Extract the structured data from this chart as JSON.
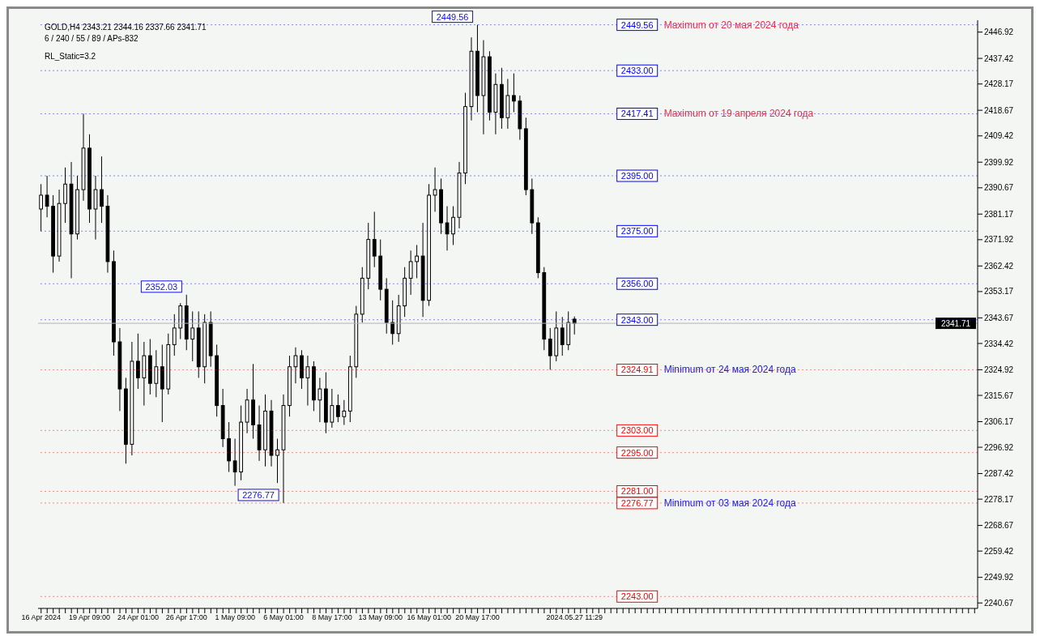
{
  "chart_data": {
    "type": "candlestick",
    "color": "#000000",
    "categories": [
      "16 Apr 2024",
      null,
      null,
      null,
      null,
      null,
      null,
      null,
      "19 Apr 09:00",
      null,
      null,
      null,
      null,
      null,
      null,
      null,
      "24 Apr 01:00",
      null,
      null,
      null,
      null,
      null,
      null,
      null,
      "26 Apr 17:00",
      null,
      null,
      null,
      null,
      null,
      null,
      null,
      "1 May 09:00",
      null,
      null,
      null,
      null,
      null,
      null,
      null,
      "6 May 01:00",
      null,
      null,
      null,
      null,
      null,
      null,
      null,
      "8 May 17:00",
      null,
      null,
      null,
      null,
      null,
      null,
      null,
      "13 May 09:00",
      null,
      null,
      null,
      null,
      null,
      null,
      null,
      "16 May 01:00",
      null,
      null,
      null,
      null,
      null,
      null,
      null,
      "20 May 17:00",
      null,
      null,
      null,
      null,
      null,
      null,
      null,
      null,
      null,
      null,
      null,
      null,
      null,
      null,
      null,
      "2024.05.27 11:29",
      null,
      null,
      null,
      null,
      null,
      null,
      null,
      null,
      null,
      null,
      null,
      null,
      null,
      null,
      null,
      null,
      null,
      null,
      null,
      null,
      null,
      null,
      null,
      null,
      null,
      null,
      null,
      null,
      null,
      null,
      null,
      null,
      null,
      null,
      null,
      null,
      null,
      null,
      null,
      null,
      null,
      null,
      null,
      null,
      null,
      null,
      null,
      null,
      null,
      null,
      null,
      null,
      null,
      null,
      null,
      null,
      null,
      null,
      null,
      null,
      null,
      null,
      null,
      null,
      null,
      null
    ],
    "ohlc": [
      [
        2383,
        2392,
        2375,
        2388
      ],
      [
        2388,
        2395,
        2380,
        2384
      ],
      [
        2384,
        2388,
        2360,
        2366
      ],
      [
        2366,
        2390,
        2364,
        2385
      ],
      [
        2385,
        2398,
        2378,
        2392
      ],
      [
        2392,
        2400,
        2358,
        2374
      ],
      [
        2374,
        2395,
        2372,
        2390
      ],
      [
        2390,
        2417.41,
        2386,
        2405
      ],
      [
        2405,
        2410,
        2378,
        2383
      ],
      [
        2383,
        2395,
        2372,
        2390
      ],
      [
        2390,
        2402,
        2378,
        2384
      ],
      [
        2384,
        2388,
        2360,
        2364
      ],
      [
        2364,
        2368,
        2330,
        2335
      ],
      [
        2335,
        2340,
        2310,
        2318
      ],
      [
        2318,
        2322,
        2291,
        2298
      ],
      [
        2298,
        2335,
        2294,
        2328
      ],
      [
        2328,
        2338,
        2318,
        2322
      ],
      [
        2322,
        2335,
        2312,
        2330
      ],
      [
        2330,
        2336,
        2316,
        2320
      ],
      [
        2320,
        2332,
        2315,
        2326
      ],
      [
        2326,
        2334,
        2306,
        2318
      ],
      [
        2318,
        2338,
        2316,
        2334
      ],
      [
        2334,
        2345,
        2330,
        2340
      ],
      [
        2340,
        2349,
        2336,
        2348
      ],
      [
        2348,
        2352.03,
        2332,
        2336
      ],
      [
        2336,
        2346,
        2328,
        2340
      ],
      [
        2340,
        2346,
        2322,
        2326
      ],
      [
        2326,
        2345,
        2320,
        2342
      ],
      [
        2342,
        2346,
        2326,
        2330
      ],
      [
        2330,
        2334,
        2308,
        2312
      ],
      [
        2312,
        2318,
        2297,
        2300
      ],
      [
        2300,
        2306,
        2288,
        2292
      ],
      [
        2292,
        2300,
        2283,
        2288
      ],
      [
        2288,
        2312,
        2285,
        2306
      ],
      [
        2306,
        2318,
        2302,
        2314
      ],
      [
        2314,
        2327,
        2300,
        2305
      ],
      [
        2305,
        2312,
        2292,
        2296
      ],
      [
        2296,
        2316,
        2290,
        2310
      ],
      [
        2310,
        2314,
        2290,
        2294
      ],
      [
        2294,
        2300,
        2284,
        2296
      ],
      [
        2296,
        2316,
        2276.77,
        2312
      ],
      [
        2312,
        2330,
        2308,
        2326
      ],
      [
        2326,
        2333,
        2320,
        2330
      ],
      [
        2330,
        2332,
        2318,
        2322
      ],
      [
        2322,
        2330,
        2312,
        2326
      ],
      [
        2326,
        2328,
        2310,
        2314
      ],
      [
        2314,
        2322,
        2306,
        2318
      ],
      [
        2318,
        2324,
        2302,
        2306
      ],
      [
        2306,
        2318,
        2304,
        2312
      ],
      [
        2312,
        2316,
        2306,
        2308
      ],
      [
        2308,
        2314,
        2305,
        2310
      ],
      [
        2310,
        2330,
        2306,
        2326
      ],
      [
        2326,
        2348,
        2322,
        2345
      ],
      [
        2345,
        2362,
        2342,
        2358
      ],
      [
        2358,
        2378,
        2354,
        2372
      ],
      [
        2372,
        2382,
        2362,
        2366
      ],
      [
        2366,
        2372,
        2350,
        2354
      ],
      [
        2354,
        2358,
        2338,
        2342
      ],
      [
        2342,
        2350,
        2334,
        2338
      ],
      [
        2338,
        2352,
        2335,
        2348
      ],
      [
        2348,
        2362,
        2344,
        2358
      ],
      [
        2358,
        2368,
        2352,
        2364
      ],
      [
        2364,
        2370,
        2358,
        2366
      ],
      [
        2366,
        2378,
        2344,
        2350
      ],
      [
        2350,
        2392,
        2348,
        2388
      ],
      [
        2388,
        2398,
        2382,
        2390
      ],
      [
        2390,
        2394,
        2374,
        2378
      ],
      [
        2378,
        2384,
        2368,
        2374
      ],
      [
        2374,
        2384,
        2370,
        2380
      ],
      [
        2380,
        2400,
        2376,
        2396
      ],
      [
        2396,
        2425,
        2392,
        2420
      ],
      [
        2420,
        2445,
        2415,
        2440
      ],
      [
        2440,
        2449.56,
        2418,
        2424
      ],
      [
        2424,
        2444,
        2410,
        2438
      ],
      [
        2438,
        2440,
        2415,
        2418
      ],
      [
        2418,
        2432,
        2410,
        2428
      ],
      [
        2428,
        2434,
        2412,
        2416
      ],
      [
        2416,
        2430,
        2412,
        2424
      ],
      [
        2424,
        2432,
        2418,
        2422
      ],
      [
        2422,
        2424,
        2408,
        2412
      ],
      [
        2412,
        2416,
        2388,
        2390
      ],
      [
        2390,
        2394,
        2374,
        2378
      ],
      [
        2378,
        2380,
        2358,
        2360
      ],
      [
        2360,
        2362,
        2332,
        2336
      ],
      [
        2336,
        2340,
        2324.91,
        2330
      ],
      [
        2330,
        2346,
        2328,
        2340
      ],
      [
        2340,
        2344,
        2330,
        2334
      ],
      [
        2334,
        2346,
        2332,
        2342
      ],
      [
        2343.21,
        2344.16,
        2337.66,
        2341.71
      ],
      null,
      null,
      null,
      null,
      null,
      null,
      null,
      null,
      null,
      null,
      null,
      null,
      null,
      null,
      null,
      null,
      null,
      null,
      null,
      null,
      null,
      null,
      null,
      null,
      null,
      null,
      null,
      null,
      null,
      null,
      null,
      null,
      null,
      null,
      null,
      null,
      null,
      null,
      null,
      null,
      null,
      null,
      null,
      null,
      null,
      null,
      null,
      null,
      null,
      null,
      null,
      null,
      null,
      null,
      null,
      null,
      null,
      null,
      null,
      null,
      null,
      null,
      null,
      null,
      null,
      null
    ],
    "ylim": [
      2238.7,
      2451.2
    ],
    "yticks": [
      2240.67,
      2249.92,
      2259.42,
      2268.67,
      2278.17,
      2287.42,
      2296.92,
      2306.17,
      2315.67,
      2324.92,
      2334.42,
      2343.67,
      2353.17,
      2362.42,
      2371.92,
      2381.17,
      2390.67,
      2399.92,
      2409.42,
      2418.67,
      2428.17,
      2437.42,
      2446.92
    ],
    "ref_lines": [
      {
        "axis": "y",
        "value": 2341.71,
        "label": "2341.71",
        "color": "#b4b4b4",
        "line_style": "solid"
      },
      {
        "axis": "y",
        "value": 2449.56,
        "label": "2449.56",
        "color": "#0000ff",
        "line_style": "dotted"
      },
      {
        "axis": "y",
        "value": 2433,
        "label": "2433.00",
        "color": "#0000ff",
        "line_style": "dotted"
      },
      {
        "axis": "y",
        "value": 2417.41,
        "label": "2417.41",
        "color": "#0000ff",
        "line_style": "dotted"
      },
      {
        "axis": "y",
        "value": 2395,
        "label": "2395.00",
        "color": "#0000ff",
        "line_style": "dotted"
      },
      {
        "axis": "y",
        "value": 2375,
        "label": "2375.00",
        "color": "#0000ff",
        "line_style": "dotted"
      },
      {
        "axis": "y",
        "value": 2356,
        "label": "2356.00",
        "color": "#0000ff",
        "line_style": "dotted"
      },
      {
        "axis": "y",
        "value": 2343,
        "label": "2343.00",
        "color": "#0000ff",
        "line_style": "dotted"
      },
      {
        "axis": "y",
        "value": 2324.91,
        "label": "2324.91",
        "color": "#ff0000",
        "line_style": "dotted"
      },
      {
        "axis": "y",
        "value": 2303,
        "label": "2303.00",
        "color": "#ff0000",
        "line_style": "dotted"
      },
      {
        "axis": "y",
        "value": 2295,
        "label": "2295.00",
        "color": "#ff0000",
        "line_style": "dotted"
      },
      {
        "axis": "y",
        "value": 2281,
        "label": "2281.00",
        "color": "#ff0000",
        "line_style": "dotted"
      },
      {
        "axis": "y",
        "value": 2276.77,
        "label": "2276.77",
        "color": "#ff0000",
        "line_style": "dotted"
      },
      {
        "axis": "y",
        "value": 2243,
        "label": "2243.00",
        "color": "#ff0000",
        "line_style": "dotted"
      }
    ],
    "annotations": [
      "GOLD,H4  2343.21 2344.16 2337.66 2341.71",
      "6 / 240 / 55 / 89 / APs-832",
      "RL_Static=3.2",
      {
        "text": "2449.56",
        "x": "20 May 17:00",
        "y": 2449.56
      },
      {
        "text": "2352.03",
        "x": "26 Apr 17:00",
        "y": 2352.03
      },
      {
        "text": "2276.77",
        "x": "6 May 01:00",
        "y": 2276.77
      },
      {
        "text": "Maximum от 20 мая 2024 года",
        "y": 2449.56
      },
      {
        "text": "Maximum от 19 апреля 2024 года",
        "y": 2417.41
      },
      {
        "text": "Minimum от 24 мая 2024 года",
        "y": 2324.91
      },
      {
        "text": "Minimum от 03 мая 2024 года",
        "y": 2276.77
      }
    ]
  }
}
